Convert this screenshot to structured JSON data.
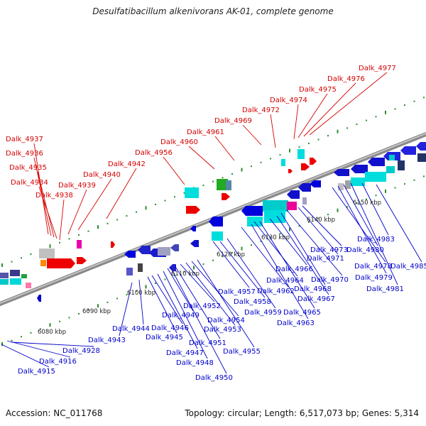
{
  "title": "Desulfatibacillum alkenivorans AK-01, complete genome",
  "footer": {
    "accession": "Accession: NC_011768",
    "topology": "Topology: circular; Length: 6,517,073 bp; Genes: 5,314"
  },
  "colors": {
    "upper_labels": "#d40000",
    "lower_labels": "#0000cc",
    "backbone": "#8a8a8a",
    "ruler_dots": "#2e8b2e"
  },
  "kbp_labels": [
    "6080 kbp",
    "6090 kbp",
    "6100 kbp",
    "6110 kbp",
    "6120 kbp",
    "6130 kbp",
    "6140 kbp",
    "6150 kbp"
  ],
  "upper_genes": [
    "Dalk_4937",
    "Dalk_4936",
    "Dalk_4935",
    "Dalk_4934",
    "Dalk_4938",
    "Dalk_4939",
    "Dalk_4940",
    "Dalk_4942",
    "Dalk_4956",
    "Dalk_4960",
    "Dalk_4961",
    "Dalk_4969",
    "Dalk_4972",
    "Dalk_4974",
    "Dalk_4975",
    "Dalk_4976",
    "Dalk_4977"
  ],
  "lower_genes": [
    "Dalk_4915",
    "Dalk_4916",
    "Dalk_4928",
    "Dalk_4943",
    "Dalk_4944",
    "Dalk_4945",
    "Dalk_4946",
    "Dalk_4947",
    "Dalk_4948",
    "Dalk_4949",
    "Dalk_4950",
    "Dalk_4951",
    "Dalk_4952",
    "Dalk_4953",
    "Dalk_4954",
    "Dalk_4955",
    "Dalk_4957",
    "Dalk_4958",
    "Dalk_4959",
    "Dalk_4962",
    "Dalk_4963",
    "Dalk_4964",
    "Dalk_4965",
    "Dalk_4966",
    "Dalk_4967",
    "Dalk_4968",
    "Dalk_4970",
    "Dalk_4971",
    "Dalk_4973",
    "Dalk_4978",
    "Dalk_4979",
    "Dalk_4980",
    "Dalk_4981",
    "Dalk_4983",
    "Dalk_4985"
  ]
}
